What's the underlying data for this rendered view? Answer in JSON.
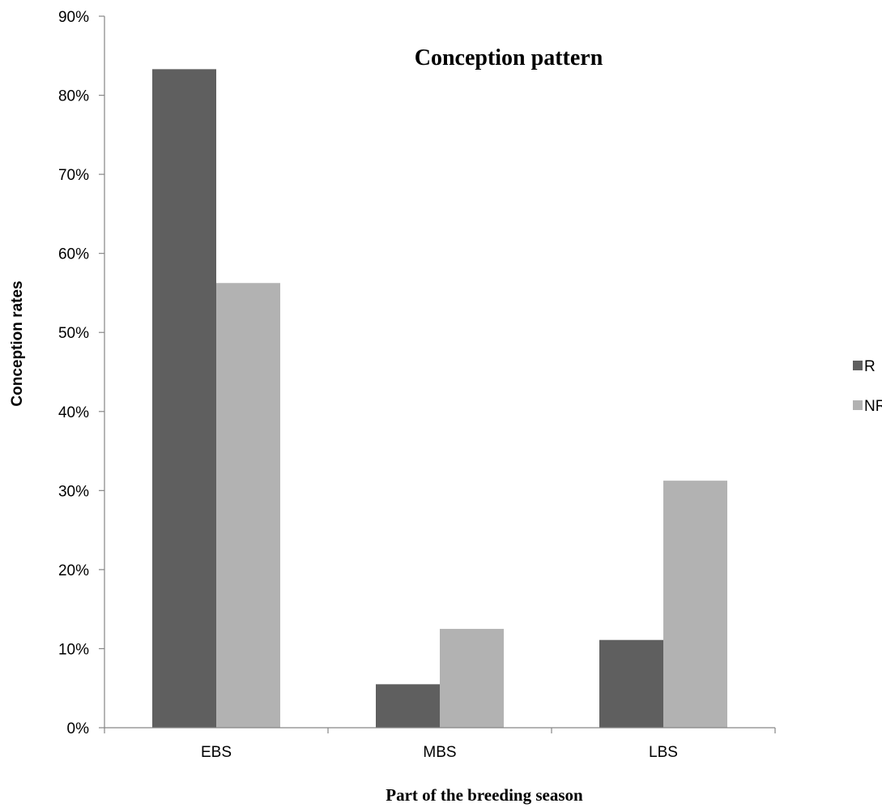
{
  "chart_data": {
    "type": "bar",
    "title": "Conception pattern",
    "xlabel": "Part of the breeding season",
    "ylabel": "Conception rates",
    "categories": [
      "EBS",
      "MBS",
      "LBS"
    ],
    "series": [
      {
        "name": "R",
        "values": [
          83.3,
          5.5,
          11.1
        ],
        "color": "#5f5f5f"
      },
      {
        "name": "NR",
        "values": [
          56.25,
          12.5,
          31.25
        ],
        "color": "#b2b2b2"
      }
    ],
    "ylim": [
      0,
      90
    ],
    "yticks": [
      "0%",
      "10%",
      "20%",
      "30%",
      "40%",
      "50%",
      "60%",
      "70%",
      "80%",
      "90%"
    ],
    "grid": false,
    "legend": "right"
  }
}
